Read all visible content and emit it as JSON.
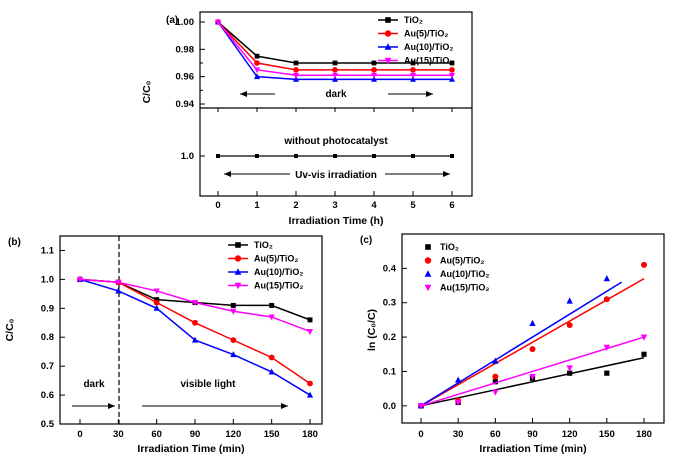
{
  "chart_data": [
    {
      "panel": "(a)",
      "type": "line",
      "xlabel": "Irradiation Time (h)",
      "ylabel": "C/C₀",
      "x": [
        0,
        1,
        2,
        3,
        4,
        5,
        6
      ],
      "x_ticks": [
        "0",
        "1",
        "2",
        "3",
        "4",
        "5",
        "6"
      ],
      "top_ylim": [
        0.94,
        1.0
      ],
      "top_y_ticks": [
        "0.94",
        "0.96",
        "0.98",
        "1.00"
      ],
      "bottom_y_ticks": [
        "1.0"
      ],
      "series": [
        {
          "name": "TiO₂",
          "color": "#000000",
          "marker": "square",
          "values": [
            1.0,
            0.975,
            0.97,
            0.97,
            0.97,
            0.97,
            0.97
          ]
        },
        {
          "name": "Au(5)/TiO₂",
          "color": "#ff0000",
          "marker": "circle",
          "values": [
            1.0,
            0.97,
            0.965,
            0.965,
            0.965,
            0.965,
            0.965
          ]
        },
        {
          "name": "Au(10)/TiO₂",
          "color": "#0000ff",
          "marker": "triangle",
          "values": [
            1.0,
            0.96,
            0.958,
            0.958,
            0.958,
            0.958,
            0.958
          ]
        },
        {
          "name": "Au(15)/TiO₂",
          "color": "#ff00ff",
          "marker": "triangle-down",
          "values": [
            1.0,
            0.965,
            0.961,
            0.961,
            0.961,
            0.961,
            0.961
          ]
        }
      ],
      "control_series": {
        "name": "without photocatalyst",
        "color": "#000000",
        "marker": "square",
        "values": [
          1.0,
          1.0,
          1.0,
          1.0,
          1.0,
          1.0,
          1.0
        ]
      },
      "annotations": {
        "dark": "dark",
        "no_catalyst": "without photocatalyst",
        "uv": "Uv-vis irradiation"
      }
    },
    {
      "panel": "(b)",
      "type": "line",
      "xlabel": "Irradiation Time (min)",
      "ylabel": "C/C₀",
      "x": [
        0,
        30,
        60,
        90,
        120,
        150,
        180
      ],
      "x_ticks": [
        "0",
        "30",
        "60",
        "90",
        "120",
        "150",
        "180"
      ],
      "ylim": [
        0.5,
        1.15
      ],
      "y_ticks": [
        "0.5",
        "0.6",
        "0.7",
        "0.8",
        "0.9",
        "1.0",
        "1.1"
      ],
      "series": [
        {
          "name": "TiO₂",
          "color": "#000000",
          "marker": "square",
          "values": [
            1.0,
            0.99,
            0.93,
            0.92,
            0.91,
            0.91,
            0.86
          ]
        },
        {
          "name": "Au(5)/TiO₂",
          "color": "#ff0000",
          "marker": "circle",
          "values": [
            1.0,
            0.99,
            0.92,
            0.85,
            0.79,
            0.73,
            0.64
          ]
        },
        {
          "name": "Au(10)/TiO₂",
          "color": "#0000ff",
          "marker": "triangle",
          "values": [
            1.0,
            0.96,
            0.9,
            0.79,
            0.74,
            0.68,
            0.6
          ]
        },
        {
          "name": "Au(15)/TiO₂",
          "color": "#ff00ff",
          "marker": "triangle-down",
          "values": [
            1.0,
            0.99,
            0.96,
            0.92,
            0.89,
            0.87,
            0.82
          ]
        }
      ],
      "annotations": {
        "dark": "dark",
        "visible": "visible light"
      }
    },
    {
      "panel": "(c)",
      "type": "scatter",
      "xlabel": "Irradiation Time (min)",
      "ylabel": "ln (C₀/C)",
      "x": [
        0,
        30,
        60,
        90,
        120,
        150,
        180
      ],
      "x_ticks": [
        "0",
        "30",
        "60",
        "90",
        "120",
        "150",
        "180"
      ],
      "ylim": [
        -0.05,
        0.5
      ],
      "y_ticks": [
        "0.0",
        "0.1",
        "0.2",
        "0.3",
        "0.4"
      ],
      "series": [
        {
          "name": "TiO₂",
          "color": "#000000",
          "marker": "square",
          "values": [
            0.0,
            0.01,
            0.07,
            0.08,
            0.095,
            0.095,
            0.15
          ],
          "fit": [
            0.0,
            0.14
          ]
        },
        {
          "name": "Au(5)/TiO₂",
          "color": "#ff0000",
          "marker": "circle",
          "values": [
            0.0,
            0.015,
            0.085,
            0.165,
            0.235,
            0.31,
            0.41
          ],
          "fit": [
            0.0,
            0.37
          ]
        },
        {
          "name": "Au(10)/TiO₂",
          "color": "#0000ff",
          "marker": "triangle",
          "values": [
            0.0,
            0.075,
            0.13,
            0.24,
            0.305,
            0.37,
            null
          ],
          "fit": [
            0.0,
            0.4
          ]
        },
        {
          "name": "Au(15)/TiO₂",
          "color": "#ff00ff",
          "marker": "triangle-down",
          "values": [
            0.0,
            0.01,
            0.04,
            0.085,
            0.11,
            0.17,
            0.2
          ],
          "fit": [
            0.0,
            0.2
          ]
        }
      ]
    }
  ]
}
